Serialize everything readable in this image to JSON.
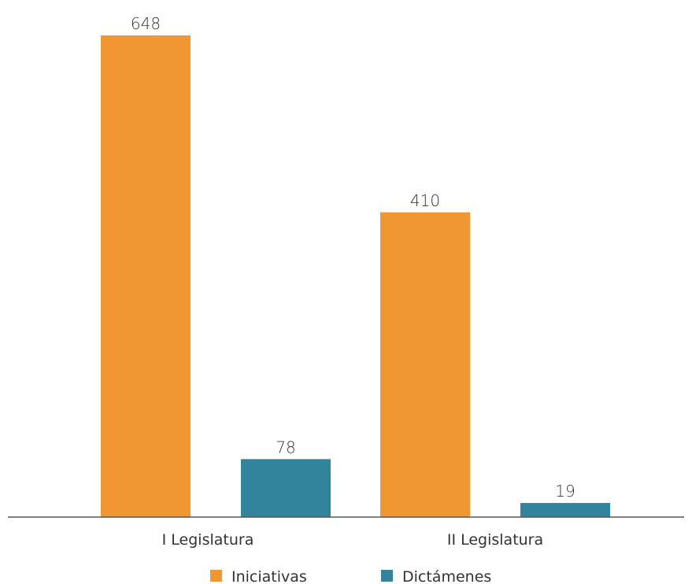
{
  "chart_data": {
    "type": "bar",
    "categories": [
      "I Legislatura",
      "II Legislatura"
    ],
    "series": [
      {
        "name": "Iniciativas",
        "values": [
          648,
          410
        ],
        "color": "#F09632"
      },
      {
        "name": "Dictámenes",
        "values": [
          78,
          19
        ],
        "color": "#31849B"
      }
    ],
    "title": "",
    "xlabel": "",
    "ylabel": "",
    "ylim": [
      0,
      648
    ],
    "grid": false,
    "legend": "bottom",
    "axis_color": "#555555"
  }
}
